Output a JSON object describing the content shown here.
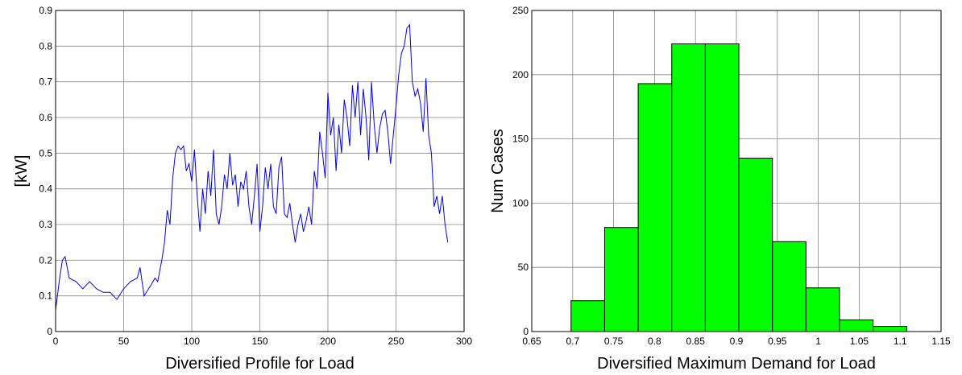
{
  "chart_data": [
    {
      "type": "line",
      "xlabel": "Diversified Profile for Load",
      "ylabel": "[kW]",
      "xlim": [
        0,
        300
      ],
      "xticks": [
        0,
        50,
        100,
        150,
        200,
        250,
        300
      ],
      "ylim": [
        0,
        0.9
      ],
      "yticks": [
        0,
        0.1,
        0.2,
        0.3,
        0.4,
        0.5,
        0.6,
        0.7,
        0.8,
        0.9
      ],
      "grid": true,
      "color": "#0000ff",
      "x": [
        0,
        3,
        5,
        7,
        10,
        15,
        20,
        25,
        30,
        35,
        40,
        45,
        50,
        55,
        60,
        62,
        65,
        70,
        73,
        75,
        78,
        80,
        82,
        84,
        86,
        88,
        90,
        92,
        94,
        96,
        98,
        100,
        102,
        104,
        106,
        108,
        110,
        112,
        114,
        116,
        118,
        120,
        122,
        124,
        126,
        128,
        130,
        132,
        134,
        136,
        138,
        140,
        142,
        144,
        146,
        148,
        150,
        152,
        154,
        156,
        158,
        160,
        162,
        164,
        166,
        168,
        170,
        172,
        174,
        176,
        178,
        180,
        182,
        184,
        186,
        188,
        190,
        192,
        194,
        196,
        198,
        200,
        202,
        204,
        206,
        208,
        210,
        212,
        214,
        216,
        218,
        220,
        222,
        224,
        226,
        228,
        230,
        232,
        234,
        236,
        238,
        240,
        242,
        244,
        246,
        248,
        250,
        252,
        254,
        256,
        258,
        260,
        262,
        264,
        266,
        268,
        270,
        272,
        274,
        276,
        278,
        280,
        282,
        284,
        286,
        288
      ],
      "values": [
        0.06,
        0.15,
        0.2,
        0.21,
        0.15,
        0.14,
        0.12,
        0.14,
        0.12,
        0.11,
        0.11,
        0.09,
        0.12,
        0.14,
        0.15,
        0.18,
        0.1,
        0.13,
        0.15,
        0.14,
        0.2,
        0.25,
        0.34,
        0.3,
        0.43,
        0.5,
        0.52,
        0.51,
        0.52,
        0.45,
        0.47,
        0.42,
        0.51,
        0.38,
        0.28,
        0.4,
        0.33,
        0.45,
        0.38,
        0.51,
        0.33,
        0.3,
        0.35,
        0.44,
        0.4,
        0.5,
        0.41,
        0.44,
        0.35,
        0.42,
        0.4,
        0.45,
        0.35,
        0.3,
        0.38,
        0.47,
        0.28,
        0.35,
        0.46,
        0.4,
        0.47,
        0.35,
        0.33,
        0.46,
        0.49,
        0.33,
        0.32,
        0.36,
        0.3,
        0.25,
        0.3,
        0.33,
        0.28,
        0.31,
        0.35,
        0.3,
        0.45,
        0.4,
        0.56,
        0.5,
        0.43,
        0.67,
        0.55,
        0.6,
        0.45,
        0.58,
        0.5,
        0.65,
        0.6,
        0.52,
        0.69,
        0.6,
        0.7,
        0.55,
        0.68,
        0.6,
        0.48,
        0.7,
        0.58,
        0.5,
        0.57,
        0.61,
        0.62,
        0.56,
        0.47,
        0.55,
        0.63,
        0.72,
        0.78,
        0.8,
        0.85,
        0.86,
        0.7,
        0.66,
        0.68,
        0.64,
        0.56,
        0.71,
        0.55,
        0.5,
        0.35,
        0.38,
        0.33,
        0.38,
        0.3,
        0.25
      ]
    },
    {
      "type": "histogram",
      "xlabel": "Diversified Maximum Demand for Load",
      "ylabel": "Num Cases",
      "xlim": [
        0.65,
        1.15
      ],
      "xticks": [
        0.65,
        0.7,
        0.75,
        0.8,
        0.85,
        0.9,
        0.95,
        1,
        1.05,
        1.1,
        1.15
      ],
      "ylim": [
        0,
        250
      ],
      "yticks": [
        0,
        50,
        100,
        150,
        200,
        250
      ],
      "grid": true,
      "color": "#00ff00",
      "bins": [
        0.698,
        0.739,
        0.78,
        0.821,
        0.862,
        0.903,
        0.944,
        0.985,
        1.026,
        1.067,
        1.108
      ],
      "counts": [
        24,
        81,
        193,
        224,
        224,
        135,
        70,
        34,
        9,
        4
      ]
    }
  ]
}
